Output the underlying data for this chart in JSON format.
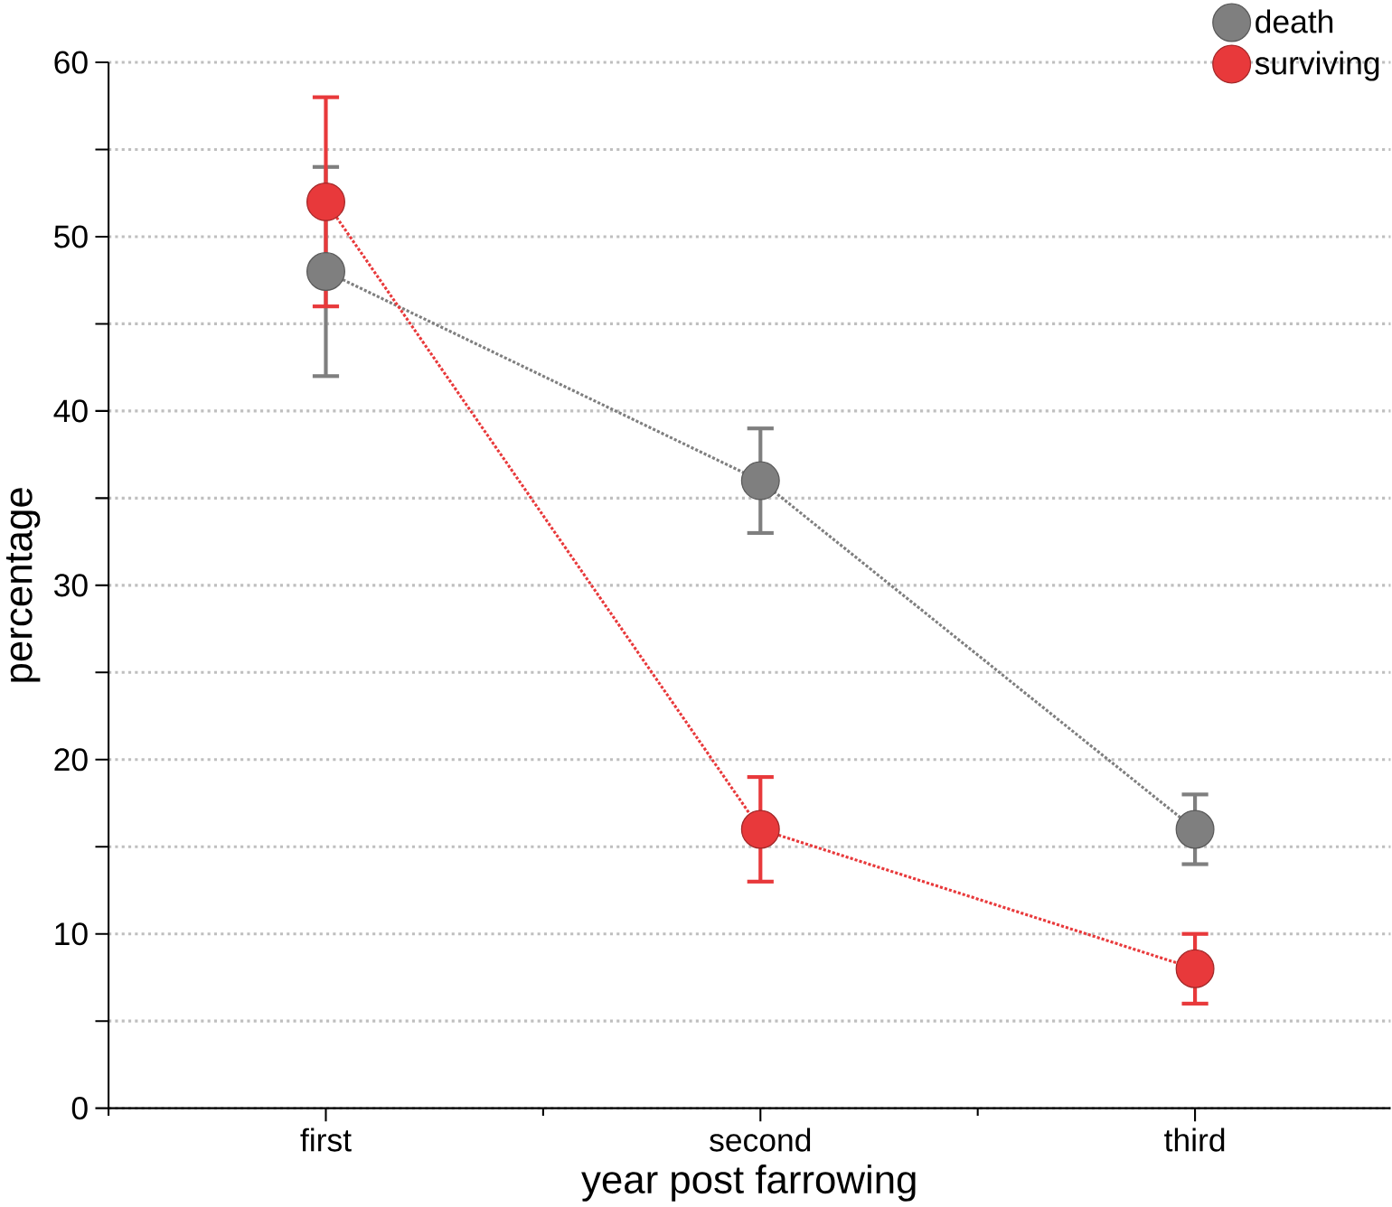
{
  "chart_data": {
    "type": "line",
    "xlabel": "year post farrowing",
    "ylabel": "percentage",
    "categories": [
      "first",
      "second",
      "third"
    ],
    "series": [
      {
        "name": "death",
        "color": "#7f7f7f",
        "values": [
          48,
          36,
          16
        ],
        "errors": [
          6,
          3,
          2
        ]
      },
      {
        "name": "surviving",
        "color": "#e8393b",
        "values": [
          52,
          16,
          8
        ],
        "errors": [
          6,
          3,
          2
        ]
      }
    ],
    "ylim": [
      0,
      60
    ],
    "yticks": [
      0,
      {
        "value": 5,
        "label": null
      },
      10,
      {
        "value": 15,
        "label": null
      },
      20,
      {
        "value": 25,
        "label": null
      },
      30,
      {
        "value": 35,
        "label": null
      },
      40,
      {
        "value": 45,
        "label": null
      },
      50,
      {
        "value": 55,
        "label": null
      },
      60
    ],
    "grid": "y",
    "legend": "top right",
    "marker": "circle",
    "line_style": "dotted"
  }
}
